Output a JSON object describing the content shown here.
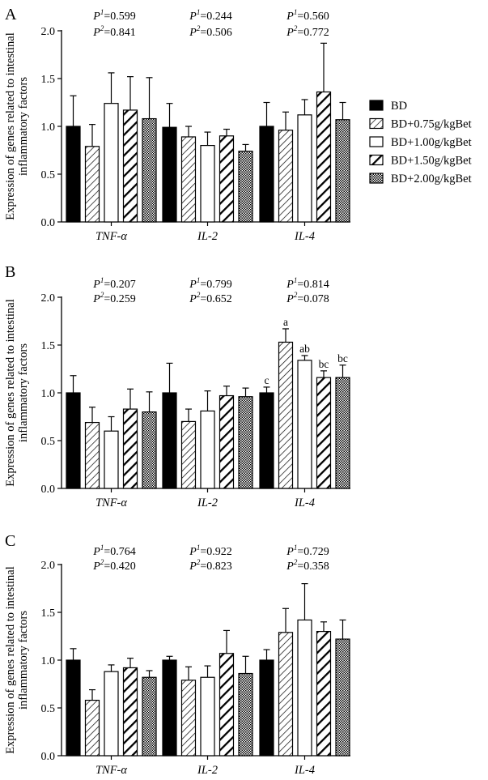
{
  "colors": {
    "ink": "#000000",
    "background": "#ffffff"
  },
  "legend": [
    {
      "label": "BD",
      "pattern": "solid"
    },
    {
      "label": "BD+0.75g/kgBet",
      "pattern": "thin-hatch"
    },
    {
      "label": "BD+1.00g/kgBet",
      "pattern": "open"
    },
    {
      "label": "BD+1.50g/kgBet",
      "pattern": "thick-hatch"
    },
    {
      "label": "BD+2.00g/kgBet",
      "pattern": "checker"
    }
  ],
  "chart_data": [
    {
      "type": "bar",
      "panel": "A",
      "ylabel": [
        "Expression of genes related to intestinal",
        "inflammatory factors"
      ],
      "ylim": [
        0,
        2.0
      ],
      "yticks": [
        "0.0",
        "0.5",
        "1.0",
        "1.5",
        "2.0"
      ],
      "categories": [
        "TNF-α",
        "IL-2",
        "IL-4"
      ],
      "series": [
        {
          "name": "BD",
          "values": [
            1.0,
            0.99,
            1.0
          ],
          "errors": [
            0.32,
            0.25,
            0.25
          ]
        },
        {
          "name": "BD+0.75g/kgBet",
          "values": [
            0.79,
            0.89,
            0.96
          ],
          "errors": [
            0.23,
            0.11,
            0.19
          ]
        },
        {
          "name": "BD+1.00g/kgBet",
          "values": [
            1.24,
            0.8,
            1.12
          ],
          "errors": [
            0.32,
            0.14,
            0.16
          ]
        },
        {
          "name": "BD+1.50g/kgBet",
          "values": [
            1.17,
            0.9,
            1.36
          ],
          "errors": [
            0.35,
            0.07,
            0.51
          ]
        },
        {
          "name": "BD+2.00g/kgBet",
          "values": [
            1.08,
            0.74,
            1.07
          ],
          "errors": [
            0.43,
            0.07,
            0.18
          ]
        }
      ],
      "p_values": [
        {
          "p1": "=0.599",
          "p2": "=0.841"
        },
        {
          "p1": "=0.244",
          "p2": "=0.506"
        },
        {
          "p1": "=0.560",
          "p2": "=0.772"
        }
      ],
      "significance": [
        [
          "",
          "",
          "",
          "",
          ""
        ],
        [
          "",
          "",
          "",
          "",
          ""
        ],
        [
          "",
          "",
          "",
          "",
          ""
        ]
      ]
    },
    {
      "type": "bar",
      "panel": "B",
      "ylabel": [
        "Expression of genes related to intestinal",
        "inflammatory factors"
      ],
      "ylim": [
        0,
        2.0
      ],
      "yticks": [
        "0.0",
        "0.5",
        "1.0",
        "1.5",
        "2.0"
      ],
      "categories": [
        "TNF-α",
        "IL-2",
        "IL-4"
      ],
      "series": [
        {
          "name": "BD",
          "values": [
            1.0,
            1.0,
            1.0
          ],
          "errors": [
            0.18,
            0.31,
            0.06
          ]
        },
        {
          "name": "BD+0.75g/kgBet",
          "values": [
            0.69,
            0.7,
            1.53
          ],
          "errors": [
            0.16,
            0.13,
            0.14
          ]
        },
        {
          "name": "BD+1.00g/kgBet",
          "values": [
            0.6,
            0.81,
            1.34
          ],
          "errors": [
            0.15,
            0.21,
            0.05
          ]
        },
        {
          "name": "BD+1.50g/kgBet",
          "values": [
            0.83,
            0.97,
            1.16
          ],
          "errors": [
            0.21,
            0.1,
            0.07
          ]
        },
        {
          "name": "BD+2.00g/kgBet",
          "values": [
            0.8,
            0.96,
            1.16
          ],
          "errors": [
            0.21,
            0.09,
            0.13
          ]
        }
      ],
      "p_values": [
        {
          "p1": "=0.207",
          "p2": "=0.259"
        },
        {
          "p1": "=0.799",
          "p2": "=0.652"
        },
        {
          "p1": "=0.814",
          "p2": "=0.078"
        }
      ],
      "significance": [
        [
          "",
          "",
          "",
          "",
          ""
        ],
        [
          "",
          "",
          "",
          "",
          ""
        ],
        [
          "c",
          "a",
          "ab",
          "bc",
          "bc"
        ]
      ]
    },
    {
      "type": "bar",
      "panel": "C",
      "ylabel": [
        "Expression of genes related to intestinal",
        "inflammatory factors"
      ],
      "ylim": [
        0,
        2.0
      ],
      "yticks": [
        "0.0",
        "0.5",
        "1.0",
        "1.5",
        "2.0"
      ],
      "categories": [
        "TNF-α",
        "IL-2",
        "IL-4"
      ],
      "series": [
        {
          "name": "BD",
          "values": [
            1.0,
            1.0,
            1.0
          ],
          "errors": [
            0.12,
            0.04,
            0.11
          ]
        },
        {
          "name": "BD+0.75g/kgBet",
          "values": [
            0.58,
            0.79,
            1.29
          ],
          "errors": [
            0.11,
            0.14,
            0.25
          ]
        },
        {
          "name": "BD+1.00g/kgBet",
          "values": [
            0.88,
            0.82,
            1.42
          ],
          "errors": [
            0.07,
            0.12,
            0.38
          ]
        },
        {
          "name": "BD+1.50g/kgBet",
          "values": [
            0.92,
            1.07,
            1.3
          ],
          "errors": [
            0.1,
            0.24,
            0.1
          ]
        },
        {
          "name": "BD+2.00g/kgBet",
          "values": [
            0.82,
            0.86,
            1.22
          ],
          "errors": [
            0.07,
            0.18,
            0.2
          ]
        }
      ],
      "p_values": [
        {
          "p1": "=0.764",
          "p2": "=0.420"
        },
        {
          "p1": "=0.922",
          "p2": "=0.823"
        },
        {
          "p1": "=0.729",
          "p2": "=0.358"
        }
      ],
      "significance": [
        [
          "",
          "",
          "",
          "",
          ""
        ],
        [
          "",
          "",
          "",
          "",
          ""
        ],
        [
          "",
          "",
          "",
          "",
          ""
        ]
      ]
    }
  ]
}
